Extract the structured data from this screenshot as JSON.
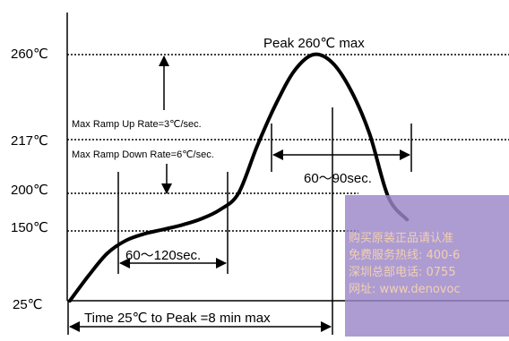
{
  "chart_data": {
    "type": "line",
    "title": "",
    "xlabel": "",
    "ylabel": "",
    "y_tick_labels": [
      "260℃",
      "217℃",
      "200℃",
      "150℃",
      "25℃"
    ],
    "y_levels": [
      260,
      217,
      200,
      150,
      25
    ],
    "series": [
      {
        "values": [
          [
            0,
            25
          ],
          [
            1,
            70
          ],
          [
            2,
            110
          ],
          [
            3,
            133
          ],
          [
            4,
            145
          ],
          [
            5,
            152
          ],
          [
            6,
            158
          ],
          [
            7,
            166
          ],
          [
            8,
            178
          ],
          [
            9,
            200
          ],
          [
            10,
            215
          ],
          [
            11,
            235
          ],
          [
            12,
            252
          ],
          [
            13,
            260
          ],
          [
            14,
            256
          ],
          [
            15,
            242
          ],
          [
            16,
            220
          ],
          [
            17,
            195
          ],
          [
            18,
            165
          ]
        ]
      }
    ],
    "annotations": {
      "peak": "Peak 260℃ max",
      "ramp_up": "Max Ramp Up Rate=3℃/sec.",
      "ramp_down": "Max Ramp Down Rate=6℃/sec.",
      "liquidus_window": "60～90sec.",
      "soak_window": "60～120sec.",
      "time_to_peak": "Time 25℃ to Peak =8 min max"
    },
    "grid": true,
    "legend": "none"
  },
  "watermark": {
    "lines": [
      "购买原装正品请认准",
      "免费服务热线: 400-6",
      "深圳总部电话: 0755",
      "网址: www.denovoc"
    ]
  }
}
